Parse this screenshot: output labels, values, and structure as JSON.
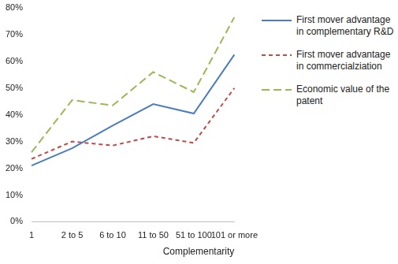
{
  "chart_data": {
    "type": "line",
    "x_label": "Complementarity",
    "categories": [
      "1",
      "2 to 5",
      "6 to 10",
      "11 to 50",
      "51 to 100",
      "101 or more"
    ],
    "series": [
      {
        "name": "First mover advantage in complementary R&D",
        "color": "#4a7ebb",
        "line_style": "solid",
        "values": [
          21,
          27.5,
          36,
          44,
          40.5,
          62.5
        ]
      },
      {
        "name": "First mover advantage in commercialziation",
        "color": "#be4b48",
        "line_style": "dashed",
        "values": [
          23.5,
          30,
          28.5,
          32,
          29.5,
          50
        ]
      },
      {
        "name": "Economic value of the patent",
        "color": "#98b954",
        "line_style": "long_dashed",
        "values": [
          26,
          45.5,
          43.5,
          56,
          48.5,
          76.5
        ]
      }
    ],
    "ylim": [
      0,
      80
    ],
    "yticks": [
      {
        "value": 0,
        "label": "0%"
      },
      {
        "value": 10,
        "label": "10%"
      },
      {
        "value": 20,
        "label": "20%"
      },
      {
        "value": 30,
        "label": "30%"
      },
      {
        "value": 40,
        "label": "40%"
      },
      {
        "value": 50,
        "label": "50%"
      },
      {
        "value": 60,
        "label": "60%"
      },
      {
        "value": 70,
        "label": "70%"
      },
      {
        "value": 80,
        "label": "80%"
      }
    ],
    "grid": false,
    "legend": "right"
  }
}
